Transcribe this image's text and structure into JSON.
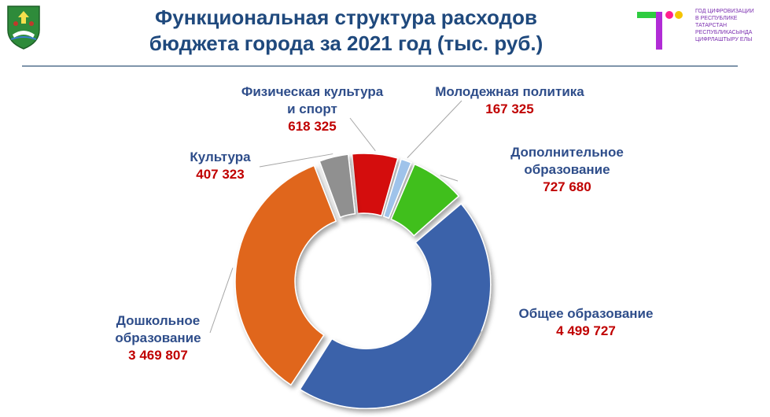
{
  "header": {
    "title_line1": "Функциональная структура расходов",
    "title_line2": "бюджета города за 2021 год (тыс. руб.)",
    "coat_of_arms_icon": "city-coat-of-arms-icon",
    "logo_icon": "digitalization-year-logo-icon",
    "logo_text": [
      "ГОД ЦИФРОВИЗАЦИИ",
      "В РЕСПУБЛИКЕ",
      "ТАТАРСТАН",
      "РЕСПУБЛИКАСЫНДА",
      "ЦИФРЛАШТЫРУ ЕЛЫ"
    ]
  },
  "colors": {
    "title": "#1f497d",
    "label_name": "#2e4d8a",
    "label_value": "#c00000"
  },
  "chart_data": {
    "type": "pie",
    "variant": "donut",
    "title": "Функциональная структура расходов бюджета города за 2021 год (тыс. руб.)",
    "unit": "тыс. руб.",
    "legend": "none",
    "slices": [
      {
        "name_lines": [
          "Физическая культура",
          "и спорт"
        ],
        "value": 618325,
        "label": "618 325",
        "color": "#d40f0f"
      },
      {
        "name_lines": [
          "Молодежная политика"
        ],
        "value": 167325,
        "label": "167 325",
        "color": "#9fc3ea"
      },
      {
        "name_lines": [
          "Дополнительное",
          "образование"
        ],
        "value": 727680,
        "label": "727 680",
        "color": "#3fbf1f"
      },
      {
        "name_lines": [
          "Общее образование"
        ],
        "value": 4499727,
        "label": "4 499 727",
        "color": "#3a62aa"
      },
      {
        "name_lines": [
          "Дошкольное",
          "образование"
        ],
        "value": 3469807,
        "label": "3 469 807",
        "color": "#e0661a"
      },
      {
        "name_lines": [
          "Культура"
        ],
        "value": 407323,
        "label": "407 323",
        "color": "#909090"
      }
    ]
  }
}
